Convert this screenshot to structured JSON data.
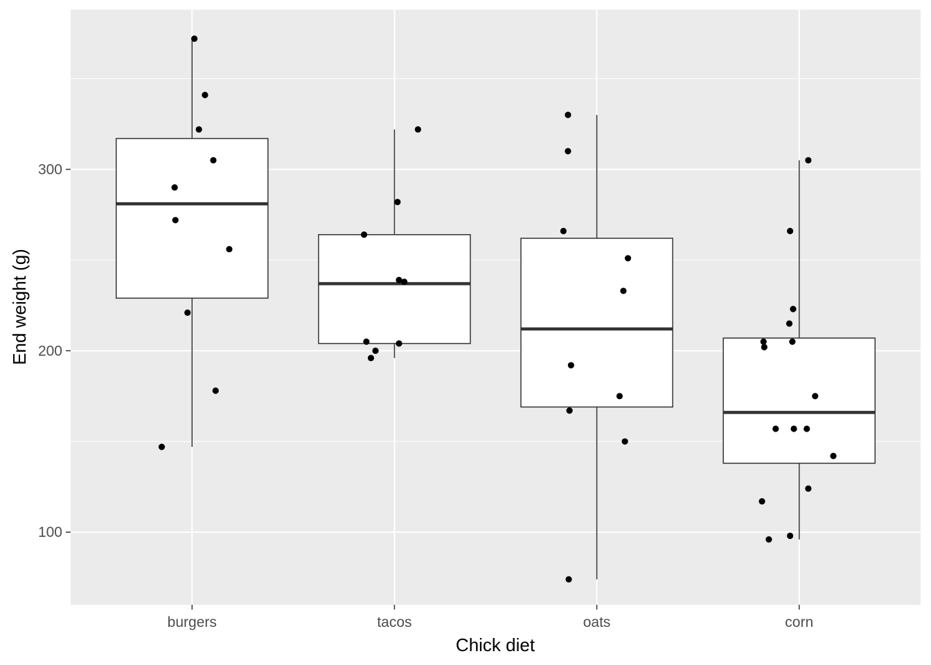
{
  "chart_data": {
    "type": "box",
    "title": "",
    "xlabel": "Chick diet",
    "ylabel": "End weight (g)",
    "ylim": [
      60,
      388
    ],
    "yticks": [
      100,
      200,
      300
    ],
    "grid": true,
    "colors": {
      "panel": "#ebebeb",
      "grid": "#ffffff",
      "box_fill": "#ffffff",
      "line": "#333333",
      "point": "#000000"
    },
    "categories": [
      "burgers",
      "tacos",
      "oats",
      "corn"
    ],
    "boxes": [
      {
        "category": "burgers",
        "whisker_low": 147,
        "q1": 229,
        "median": 281,
        "q3": 317,
        "whisker_high": 372
      },
      {
        "category": "tacos",
        "whisker_low": 196,
        "q1": 204,
        "median": 237,
        "q3": 264,
        "whisker_high": 322
      },
      {
        "category": "oats",
        "whisker_low": 74,
        "q1": 169,
        "median": 212,
        "q3": 262,
        "whisker_high": 330
      },
      {
        "category": "corn",
        "whisker_low": 96,
        "q1": 138,
        "median": 166,
        "q3": 207,
        "whisker_high": 305
      }
    ],
    "points": [
      {
        "category": "burgers",
        "values": [
          372,
          341,
          322,
          305,
          290,
          272,
          256,
          221,
          178,
          147
        ]
      },
      {
        "category": "tacos",
        "values": [
          322,
          282,
          264,
          239,
          238,
          205,
          204,
          200,
          196
        ]
      },
      {
        "category": "oats",
        "values": [
          330,
          310,
          266,
          251,
          233,
          192,
          175,
          167,
          150,
          74
        ]
      },
      {
        "category": "corn",
        "values": [
          305,
          266,
          223,
          215,
          205,
          205,
          202,
          175,
          157,
          157,
          157,
          142,
          124,
          117,
          98,
          96
        ]
      }
    ]
  }
}
